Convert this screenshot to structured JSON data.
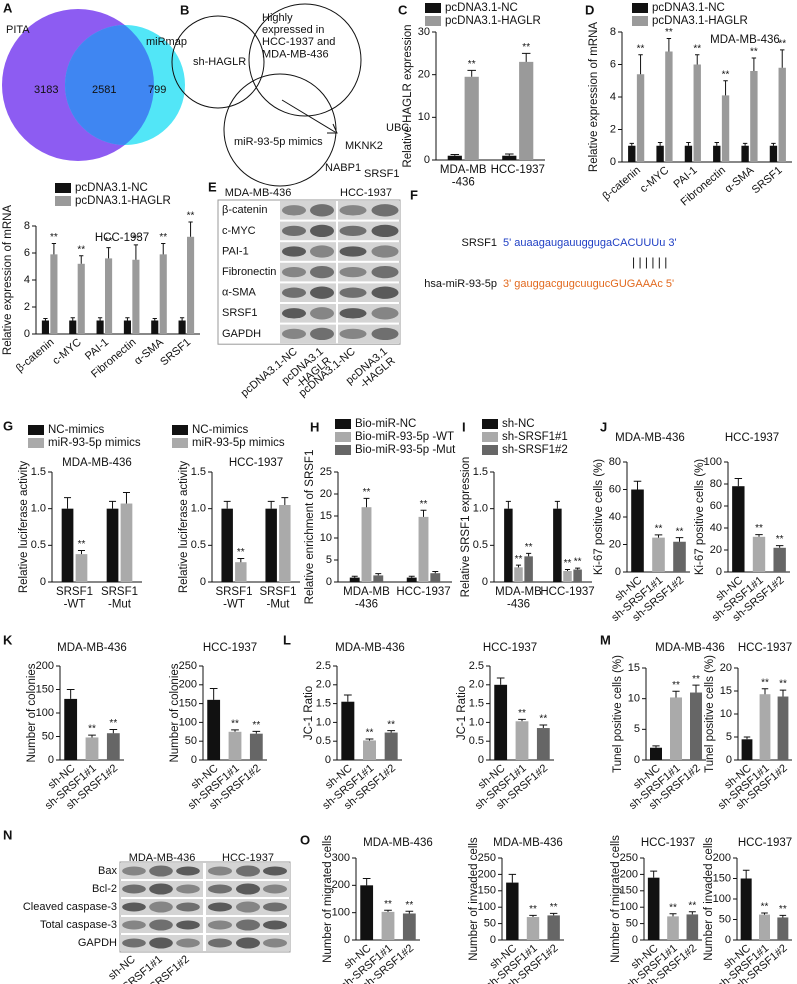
{
  "venn": {
    "panel": "A",
    "sets": [
      {
        "name": "PITA",
        "only": 3183
      },
      {
        "name": "miRmap",
        "only": 799
      }
    ],
    "overlap": 2581
  },
  "diagram": {
    "panel": "B",
    "circles": [
      "sh-HAGLR",
      "Highly\nexpressed in\nHCC-1937 and\nMDA-MB-436",
      "miR-93-5p mimics"
    ],
    "genes": [
      "MKNK2",
      "UBC",
      "NABP1",
      "SRSF1"
    ]
  },
  "blot_e": {
    "panel": "E",
    "cell_lines": [
      "MDA-MB-436",
      "HCC-1937"
    ],
    "rows": [
      "β-catenin",
      "c-MYC",
      "PAI-1",
      "Fibronectin",
      "α-SMA",
      "SRSF1",
      "GAPDH"
    ],
    "lanes": [
      "pcDNA3.1-NC",
      "pcDNA3.1\n-HAGLR",
      "pcDNA3.1-NC",
      "pcDNA3.1\n-HAGLR"
    ]
  },
  "sequence": {
    "panel": "F",
    "target": {
      "name": "SRSF1",
      "sequence": "5' auaagaugauuggugaCACUUUu 3'"
    },
    "pairing": "| | | | | |",
    "mirna": {
      "name": "hsa-miR-93-5p",
      "sequence": "3' gauggacgugcuugucGUGAAAc 5'"
    }
  },
  "blot_n": {
    "panel": "N",
    "cell_lines": [
      "MDA-MB-436",
      "HCC-1937"
    ],
    "rows": [
      "Bax",
      "Bcl-2",
      "Cleaved caspase-3",
      "Total caspase-3",
      "GAPDH"
    ],
    "lanes": [
      "sh-NC",
      "sh-SRSF1#1",
      "sh-SRSF1#2"
    ]
  },
  "chart_data": [
    {
      "type": "bar",
      "panel": "C",
      "ylabel": "Relative HAGLR expression",
      "categories": [
        "MDA-MB\n-436",
        "HCC-1937"
      ],
      "ylim": [
        0,
        30
      ],
      "yticks": [
        0,
        10,
        20,
        30
      ],
      "series": [
        {
          "name": "pcDNA3.1-NC",
          "color": "#111111",
          "values": [
            1,
            1
          ],
          "errors": [
            0.3,
            0.4
          ],
          "sig": [
            null,
            null
          ]
        },
        {
          "name": "pcDNA3.1-HAGLR",
          "color": "#9a9a9a",
          "values": [
            19.5,
            23
          ],
          "errors": [
            1.5,
            2
          ],
          "sig": [
            "**",
            "**"
          ]
        }
      ]
    },
    {
      "type": "bar",
      "panel": "D",
      "subtitle": "MDA-MB-436",
      "ylabel": "Relative expression of mRNA",
      "categories": [
        "β-catenin",
        "c-MYC",
        "PAI-1",
        "Fibronectin",
        "α-SMA",
        "SRSF1"
      ],
      "ylim": [
        0,
        8
      ],
      "yticks": [
        0,
        2,
        4,
        6,
        8
      ],
      "series": [
        {
          "name": "pcDNA3.1-NC",
          "color": "#111111",
          "values": [
            1,
            1,
            1,
            1,
            1,
            1
          ],
          "errors": [
            0.15,
            0.2,
            0.2,
            0.2,
            0.15,
            0.15
          ],
          "sig": [
            null,
            null,
            null,
            null,
            null,
            null
          ]
        },
        {
          "name": "pcDNA3.1-HAGLR",
          "color": "#9a9a9a",
          "values": [
            5.4,
            6.8,
            6.0,
            4.1,
            5.6,
            5.8
          ],
          "errors": [
            1.2,
            0.8,
            0.6,
            0.9,
            0.8,
            1.1
          ],
          "sig": [
            "**",
            "**",
            "**",
            "**",
            "**",
            "**"
          ]
        }
      ]
    },
    {
      "type": "bar",
      "subtitle": "HCC-1937",
      "ylabel": "Relative expression of mRNA",
      "categories": [
        "β-catenin",
        "c-MYC",
        "PAI-1",
        "Fibronectin",
        "α-SMA",
        "SRSF1"
      ],
      "ylim": [
        0,
        8
      ],
      "yticks": [
        0,
        2,
        4,
        6,
        8
      ],
      "series": [
        {
          "name": "pcDNA3.1-NC",
          "color": "#111111",
          "values": [
            1,
            1,
            1,
            1,
            1,
            1
          ],
          "errors": [
            0.15,
            0.2,
            0.2,
            0.2,
            0.15,
            0.2
          ],
          "sig": [
            null,
            null,
            null,
            null,
            null,
            null
          ]
        },
        {
          "name": "pcDNA3.1-HAGLR",
          "color": "#9a9a9a",
          "values": [
            5.9,
            5.2,
            5.6,
            5.5,
            5.9,
            7.2
          ],
          "errors": [
            0.8,
            0.6,
            0.8,
            1.1,
            0.8,
            1.1
          ],
          "sig": [
            "**",
            "**",
            "**",
            "**",
            "**",
            "**"
          ]
        }
      ]
    },
    {
      "type": "bar",
      "panel": "G",
      "subtitle": "MDA-MB-436",
      "ylabel": "Relative luciferase activity",
      "categories": [
        "SRSF1\n-WT",
        "SRSF1\n-Mut"
      ],
      "ylim": [
        0,
        1.5
      ],
      "yticks": [
        0,
        0.5,
        {
          "value": 1,
          "label": "1.0"
        },
        1.5
      ],
      "series": [
        {
          "name": "NC-mimics",
          "color": "#111111",
          "values": [
            1,
            1
          ],
          "errors": [
            0.15,
            0.1
          ],
          "sig": [
            null,
            null
          ]
        },
        {
          "name": "miR-93-5p mimics",
          "color": "#aaaaaa",
          "values": [
            0.38,
            1.07
          ],
          "errors": [
            0.05,
            0.15
          ],
          "sig": [
            "**",
            null
          ]
        }
      ]
    },
    {
      "type": "bar",
      "subtitle": "HCC-1937",
      "ylabel": "Relative luciferase activity",
      "categories": [
        "SRSF1\n-WT",
        "SRSF1\n-Mut"
      ],
      "ylim": [
        0,
        1.5
      ],
      "yticks": [
        0,
        0.5,
        {
          "value": 1,
          "label": "1.0"
        },
        1.5
      ],
      "series": [
        {
          "name": "NC-mimics",
          "color": "#111111",
          "values": [
            1,
            1
          ],
          "errors": [
            0.1,
            0.1
          ],
          "sig": [
            null,
            null
          ]
        },
        {
          "name": "miR-93-5p mimics",
          "color": "#aaaaaa",
          "values": [
            0.27,
            1.05
          ],
          "errors": [
            0.05,
            0.1
          ],
          "sig": [
            "**",
            null
          ]
        }
      ]
    },
    {
      "type": "bar",
      "panel": "H",
      "ylabel": "Relative enrichment of SRSF1",
      "categories": [
        "MDA-MB\n-436",
        "HCC-1937"
      ],
      "ylim": [
        0,
        25
      ],
      "yticks": [
        0,
        5,
        10,
        15,
        20,
        25
      ],
      "series": [
        {
          "name": "Bio-miR-NC",
          "color": "#111111",
          "values": [
            1,
            1
          ],
          "errors": [
            0.3,
            0.3
          ],
          "sig": [
            null,
            null
          ]
        },
        {
          "name": "Bio-miR-93-5p -WT",
          "color": "#aaaaaa",
          "values": [
            17,
            14.8
          ],
          "errors": [
            2,
            1.5
          ],
          "sig": [
            "**",
            "**"
          ]
        },
        {
          "name": "Bio-miR-93-5p -Mut",
          "color": "#666666",
          "values": [
            1.5,
            2
          ],
          "errors": [
            0.4,
            0.4
          ],
          "sig": [
            null,
            null
          ]
        }
      ]
    },
    {
      "type": "bar",
      "panel": "I",
      "ylabel": "Relative SRSF1 expression",
      "categories": [
        "MDA-MB\n-436",
        "HCC-1937"
      ],
      "ylim": [
        0,
        1.5
      ],
      "yticks": [
        0,
        0.5,
        {
          "value": 1,
          "label": "1.0"
        },
        1.5
      ],
      "series": [
        {
          "name": "sh-NC",
          "color": "#111111",
          "values": [
            1,
            1
          ],
          "errors": [
            0.1,
            0.1
          ],
          "sig": [
            null,
            null
          ]
        },
        {
          "name": "sh-SRSF1#1",
          "color": "#aaaaaa",
          "values": [
            0.2,
            0.15
          ],
          "errors": [
            0.03,
            0.02
          ],
          "sig": [
            "**",
            "**"
          ]
        },
        {
          "name": "sh-SRSF1#2",
          "color": "#666666",
          "values": [
            0.35,
            0.17
          ],
          "errors": [
            0.04,
            0.02
          ],
          "sig": [
            "**",
            "**"
          ]
        }
      ]
    },
    {
      "type": "bar",
      "panel": "J",
      "subtitle": "MDA-MB-436",
      "ylabel": "Ki-67 positive cells (%)",
      "categories": [
        "sh-NC",
        "sh-SRSF1#1",
        "sh-SRSF1#2"
      ],
      "colors": [
        "#111111",
        "#aaaaaa",
        "#666666"
      ],
      "values": [
        60,
        25,
        22
      ],
      "errors": [
        6,
        2,
        3
      ],
      "sig": [
        null,
        "**",
        "**"
      ],
      "ylim": [
        0,
        80
      ],
      "yticks": [
        0,
        20,
        40,
        60,
        80
      ]
    },
    {
      "type": "bar",
      "subtitle": "HCC-1937",
      "ylabel": "Ki-67 positive cells (%)",
      "categories": [
        "sh-NC",
        "sh-SRSF1#1",
        "sh-SRSF1#2"
      ],
      "colors": [
        "#111111",
        "#aaaaaa",
        "#666666"
      ],
      "values": [
        78,
        32,
        22
      ],
      "errors": [
        7,
        2,
        2
      ],
      "sig": [
        null,
        "**",
        "**"
      ],
      "ylim": [
        0,
        100
      ],
      "yticks": [
        0,
        20,
        40,
        60,
        80,
        100
      ]
    },
    {
      "type": "bar",
      "panel": "K",
      "subtitle": "MDA-MB-436",
      "ylabel": "Number of colonies",
      "categories": [
        "sh-NC",
        "sh-SRSF1#1",
        "sh-SRSF1#2"
      ],
      "colors": [
        "#111111",
        "#aaaaaa",
        "#666666"
      ],
      "values": [
        130,
        48,
        57
      ],
      "errors": [
        20,
        5,
        8
      ],
      "sig": [
        null,
        "**",
        "**"
      ],
      "ylim": [
        0,
        200
      ],
      "yticks": [
        0,
        50,
        100,
        150,
        200
      ]
    },
    {
      "type": "bar",
      "subtitle": "HCC-1937",
      "ylabel": "Number of colonies",
      "categories": [
        "sh-NC",
        "sh-SRSF1#1",
        "sh-SRSF1#2"
      ],
      "colors": [
        "#111111",
        "#aaaaaa",
        "#666666"
      ],
      "values": [
        160,
        75,
        70
      ],
      "errors": [
        30,
        5,
        6
      ],
      "sig": [
        null,
        "**",
        "**"
      ],
      "ylim": [
        0,
        250
      ],
      "yticks": [
        0,
        50,
        100,
        150,
        200,
        250
      ]
    },
    {
      "type": "bar",
      "panel": "L",
      "subtitle": "MDA-MB-436",
      "ylabel": "JC-1 Ratio",
      "categories": [
        "sh-NC",
        "sh-SRSF1#1",
        "sh-SRSF1#2"
      ],
      "colors": [
        "#111111",
        "#aaaaaa",
        "#666666"
      ],
      "values": [
        1.55,
        0.52,
        0.73
      ],
      "errors": [
        0.18,
        0.04,
        0.05
      ],
      "sig": [
        null,
        "**",
        "**"
      ],
      "ylim": [
        0,
        2.5
      ],
      "yticks": [
        0,
        0.5,
        {
          "value": 1,
          "label": "1.0"
        },
        1.5,
        {
          "value": 2,
          "label": "2.0"
        },
        2.5
      ]
    },
    {
      "type": "bar",
      "subtitle": "HCC-1937",
      "ylabel": "JC-1 Ratio",
      "categories": [
        "sh-NC",
        "sh-SRSF1#1",
        "sh-SRSF1#2"
      ],
      "colors": [
        "#111111",
        "#aaaaaa",
        "#666666"
      ],
      "values": [
        2.0,
        1.03,
        0.85
      ],
      "errors": [
        0.18,
        0.05,
        0.08
      ],
      "sig": [
        null,
        "**",
        "**"
      ],
      "ylim": [
        0,
        2.5
      ],
      "yticks": [
        0,
        0.5,
        {
          "value": 1,
          "label": "1.0"
        },
        1.5,
        {
          "value": 2,
          "label": "2.0"
        },
        2.5
      ]
    },
    {
      "type": "bar",
      "panel": "M",
      "subtitle": "MDA-MB-436",
      "ylabel": "Tunel positive cells (%)",
      "categories": [
        "sh-NC",
        "sh-SRSF1#1",
        "sh-SRSF1#2"
      ],
      "colors": [
        "#111111",
        "#aaaaaa",
        "#666666"
      ],
      "values": [
        2,
        10.2,
        11
      ],
      "errors": [
        0.3,
        1,
        1.2
      ],
      "sig": [
        null,
        "**",
        "**"
      ],
      "ylim": [
        0,
        15
      ],
      "yticks": [
        0,
        5,
        10,
        15
      ]
    },
    {
      "type": "bar",
      "subtitle": "HCC-1937",
      "ylabel": "Tunel positive cells (%)",
      "categories": [
        "sh-NC",
        "sh-SRSF1#1",
        "sh-SRSF1#2"
      ],
      "colors": [
        "#111111",
        "#aaaaaa",
        "#666666"
      ],
      "values": [
        4.5,
        14.3,
        13.8
      ],
      "errors": [
        0.5,
        1.2,
        1.4
      ],
      "sig": [
        null,
        "**",
        "**"
      ],
      "ylim": [
        0,
        20
      ],
      "yticks": [
        0,
        5,
        10,
        15,
        20
      ]
    },
    {
      "type": "bar",
      "panel": "O",
      "subtitle": "MDA-MB-436",
      "ylabel": "Number of migrated cells",
      "categories": [
        "sh-NC",
        "sh-SRSF1#1",
        "sh-SRSF1#2"
      ],
      "colors": [
        "#111111",
        "#aaaaaa",
        "#666666"
      ],
      "values": [
        200,
        103,
        97
      ],
      "errors": [
        25,
        6,
        8
      ],
      "sig": [
        null,
        "**",
        "**"
      ],
      "ylim": [
        0,
        300
      ],
      "yticks": [
        0,
        100,
        200,
        300
      ]
    },
    {
      "type": "bar",
      "subtitle": "MDA-MB-436",
      "ylabel": "Number of invaded cells",
      "categories": [
        "sh-NC",
        "sh-SRSF1#1",
        "sh-SRSF1#2"
      ],
      "colors": [
        "#111111",
        "#aaaaaa",
        "#666666"
      ],
      "values": [
        175,
        70,
        75
      ],
      "errors": [
        25,
        5,
        6
      ],
      "sig": [
        null,
        "**",
        "**"
      ],
      "ylim": [
        0,
        250
      ],
      "yticks": [
        0,
        50,
        100,
        150,
        200,
        250
      ]
    },
    {
      "type": "bar",
      "subtitle": "HCC-1937",
      "ylabel": "Number of migrated cells",
      "categories": [
        "sh-NC",
        "sh-SRSF1#1",
        "sh-SRSF1#2"
      ],
      "colors": [
        "#111111",
        "#aaaaaa",
        "#666666"
      ],
      "values": [
        190,
        72,
        78
      ],
      "errors": [
        20,
        8,
        8
      ],
      "sig": [
        null,
        "**",
        "**"
      ],
      "ylim": [
        0,
        250
      ],
      "yticks": [
        0,
        50,
        100,
        150,
        200,
        250
      ]
    },
    {
      "type": "bar",
      "subtitle": "HCC-1937",
      "ylabel": "Number of invaded cells",
      "categories": [
        "sh-NC",
        "sh-SRSF1#1",
        "sh-SRSF1#2"
      ],
      "colors": [
        "#111111",
        "#aaaaaa",
        "#666666"
      ],
      "values": [
        150,
        62,
        55
      ],
      "errors": [
        20,
        4,
        5
      ],
      "sig": [
        null,
        "**",
        "**"
      ],
      "ylim": [
        0,
        200
      ],
      "yticks": [
        0,
        50,
        100,
        150,
        200
      ]
    }
  ]
}
